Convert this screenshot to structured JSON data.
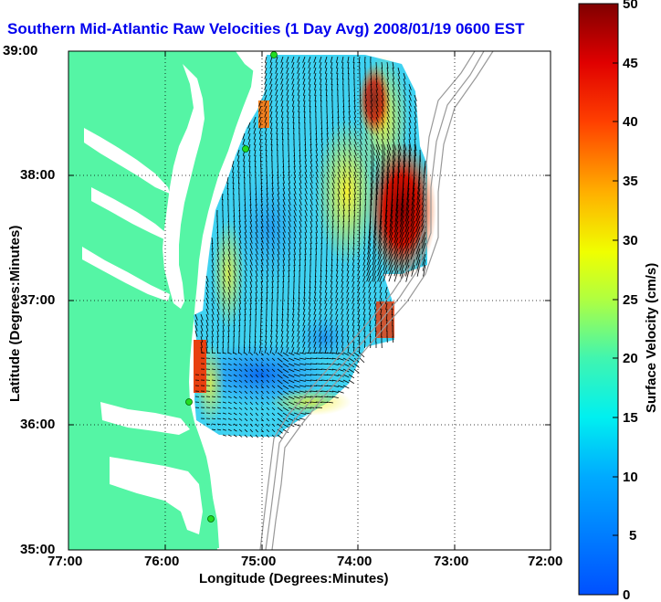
{
  "map": {
    "title": "Southern Mid-Atlantic Raw Velocities (1 Day Avg) 2008/01/19 0600 EST",
    "xlabel": "Longitude (Degrees:Minutes)",
    "ylabel": "Latitude (Degrees:Minutes)",
    "x_ticks": [
      "77:00",
      "76:00",
      "75:00",
      "74:00",
      "73:00",
      "72:00"
    ],
    "y_ticks": [
      "39:00",
      "38:00",
      "37:00",
      "36:00",
      "35:00"
    ],
    "colors": {
      "land": "#55f5a5",
      "water": "#ffffff",
      "title": "#0000ee",
      "stations": "#22dd22"
    }
  },
  "colorbar": {
    "label": "Surface Velocity (cm/s)",
    "ticks": [
      "50",
      "45",
      "40",
      "35",
      "30",
      "25",
      "20",
      "15",
      "10",
      "5",
      "0"
    ],
    "min": 0,
    "max": 50
  }
}
